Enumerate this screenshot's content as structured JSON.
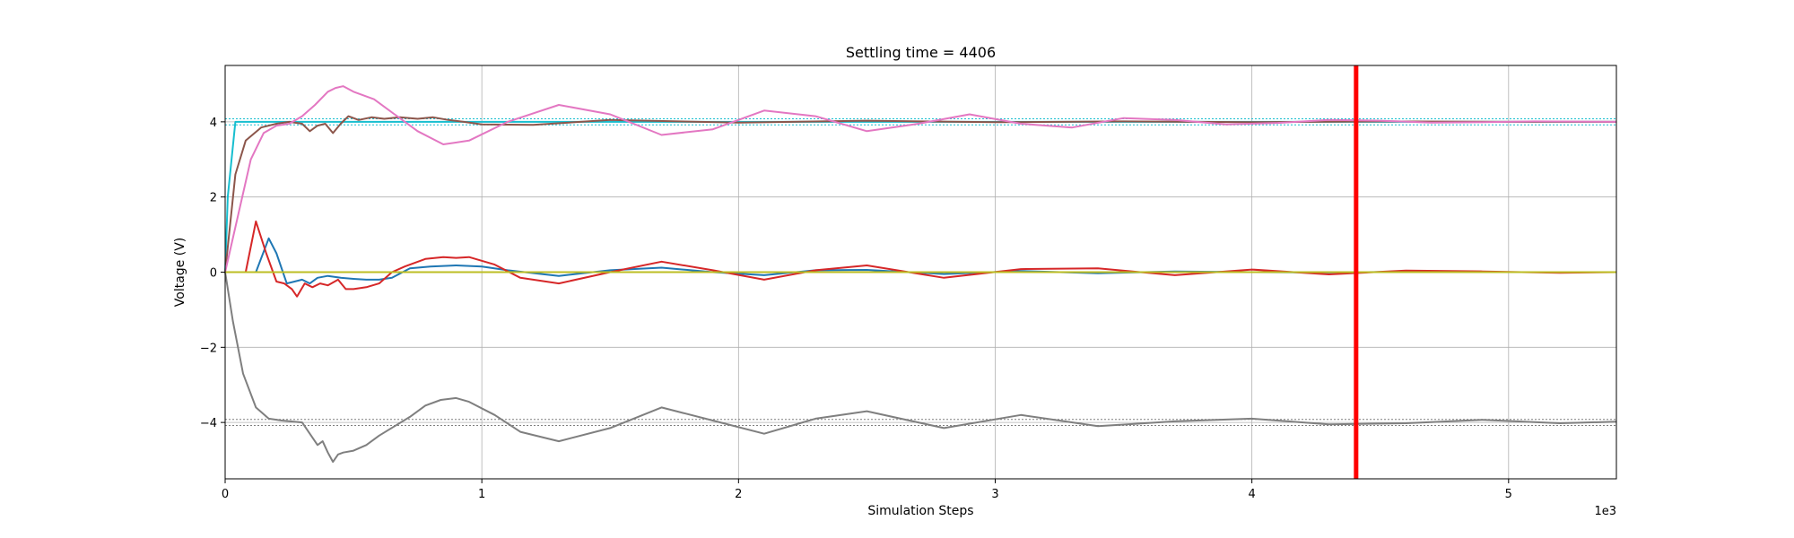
{
  "chart_data": {
    "type": "line",
    "title": "Settling time = 4406",
    "xlabel": "Simulation Steps",
    "ylabel": "Voltage (V)",
    "x_offset_label": "1e3",
    "xlim": [
      0,
      5.42
    ],
    "ylim": [
      -5.5,
      5.5
    ],
    "x_ticks": [
      0,
      1,
      2,
      3,
      4,
      5
    ],
    "x_tick_labels": [
      "0",
      "1",
      "2",
      "3",
      "4",
      "5"
    ],
    "y_ticks": [
      -4,
      -2,
      0,
      2,
      4
    ],
    "y_tick_labels": [
      "−4",
      "−2",
      "0",
      "2",
      "4"
    ],
    "grid": true,
    "settling_marker": {
      "x": 4.406,
      "color": "#ff0000"
    },
    "reference_bands": [
      {
        "color": "#17becf",
        "values": [
          4.08,
          3.92
        ]
      },
      {
        "color": "#7f7f7f",
        "values": [
          -3.92,
          -4.08
        ]
      }
    ],
    "series": [
      {
        "color": "#17becf",
        "x": [
          0,
          0.01,
          0.04,
          5.42
        ],
        "y": [
          0,
          2.0,
          4.0,
          4.0
        ]
      },
      {
        "color": "#8c564b",
        "x": [
          0,
          0.04,
          0.08,
          0.14,
          0.2,
          0.25,
          0.3,
          0.33,
          0.36,
          0.39,
          0.42,
          0.45,
          0.48,
          0.52,
          0.57,
          0.62,
          0.68,
          0.75,
          0.81,
          0.87,
          0.93,
          1.0,
          1.2,
          1.5,
          2.0,
          2.5,
          3.0,
          3.5,
          4.0,
          4.5,
          5.0,
          5.42
        ],
        "y": [
          0,
          2.6,
          3.5,
          3.85,
          3.95,
          4.0,
          3.95,
          3.75,
          3.9,
          3.95,
          3.7,
          3.95,
          4.15,
          4.05,
          4.12,
          4.08,
          4.12,
          4.08,
          4.12,
          4.05,
          4.0,
          3.93,
          3.92,
          4.05,
          3.98,
          4.03,
          3.99,
          4.01,
          3.99,
          4.01,
          4.0,
          4.0
        ]
      },
      {
        "color": "#e377c2",
        "x": [
          0,
          0.05,
          0.1,
          0.15,
          0.2,
          0.25,
          0.3,
          0.35,
          0.4,
          0.43,
          0.46,
          0.5,
          0.58,
          0.66,
          0.75,
          0.85,
          0.95,
          1.1,
          1.3,
          1.5,
          1.7,
          1.9,
          2.1,
          2.3,
          2.5,
          2.7,
          2.9,
          3.1,
          3.3,
          3.5,
          3.7,
          3.9,
          4.1,
          4.3,
          4.5,
          4.7,
          4.9,
          5.1,
          5.42
        ],
        "y": [
          0,
          1.5,
          3.0,
          3.7,
          3.9,
          3.95,
          4.15,
          4.45,
          4.8,
          4.9,
          4.95,
          4.8,
          4.6,
          4.2,
          3.75,
          3.4,
          3.5,
          4.0,
          4.45,
          4.2,
          3.65,
          3.8,
          4.3,
          4.15,
          3.75,
          3.95,
          4.2,
          3.95,
          3.85,
          4.1,
          4.05,
          3.93,
          3.97,
          4.05,
          4.03,
          3.98,
          3.99,
          4.01,
          4.0
        ]
      },
      {
        "color": "#7f7f7f",
        "x": [
          0,
          0.03,
          0.07,
          0.12,
          0.17,
          0.22,
          0.3,
          0.33,
          0.36,
          0.38,
          0.4,
          0.42,
          0.44,
          0.46,
          0.5,
          0.55,
          0.6,
          0.66,
          0.72,
          0.78,
          0.84,
          0.9,
          0.95,
          1.05,
          1.15,
          1.3,
          1.5,
          1.7,
          1.9,
          2.1,
          2.3,
          2.5,
          2.8,
          3.1,
          3.4,
          3.7,
          4.0,
          4.3,
          4.6,
          4.9,
          5.2,
          5.42
        ],
        "y": [
          0,
          -1.3,
          -2.7,
          -3.6,
          -3.9,
          -3.95,
          -4.0,
          -4.3,
          -4.6,
          -4.5,
          -4.8,
          -5.05,
          -4.85,
          -4.8,
          -4.75,
          -4.6,
          -4.35,
          -4.1,
          -3.85,
          -3.55,
          -3.4,
          -3.35,
          -3.45,
          -3.8,
          -4.25,
          -4.5,
          -4.15,
          -3.6,
          -3.95,
          -4.3,
          -3.9,
          -3.7,
          -4.15,
          -3.8,
          -4.1,
          -3.97,
          -3.9,
          -4.05,
          -4.02,
          -3.93,
          -4.02,
          -3.98
        ]
      },
      {
        "color": "#1f77b4",
        "x": [
          0,
          0.12,
          0.17,
          0.2,
          0.24,
          0.27,
          0.3,
          0.33,
          0.36,
          0.4,
          0.45,
          0.5,
          0.55,
          0.6,
          0.65,
          0.72,
          0.8,
          0.9,
          1.0,
          1.1,
          1.3,
          1.5,
          1.7,
          1.9,
          2.1,
          2.3,
          2.5,
          2.8,
          3.1,
          3.4,
          3.7,
          4.0,
          4.3,
          4.6,
          4.9,
          5.2,
          5.42
        ],
        "y": [
          0,
          0,
          0.9,
          0.5,
          -0.3,
          -0.25,
          -0.2,
          -0.3,
          -0.15,
          -0.1,
          -0.15,
          -0.18,
          -0.2,
          -0.2,
          -0.15,
          0.1,
          0.15,
          0.18,
          0.15,
          0.05,
          -0.1,
          0.05,
          0.12,
          0.0,
          -0.08,
          0.05,
          0.06,
          -0.05,
          0.03,
          -0.03,
          0.02,
          0.0,
          -0.01,
          0.01,
          0.0,
          0.0,
          0.0
        ]
      },
      {
        "color": "#d62728",
        "x": [
          0,
          0.08,
          0.12,
          0.16,
          0.2,
          0.23,
          0.26,
          0.28,
          0.31,
          0.34,
          0.37,
          0.4,
          0.44,
          0.47,
          0.5,
          0.55,
          0.6,
          0.65,
          0.7,
          0.78,
          0.85,
          0.9,
          0.95,
          1.05,
          1.15,
          1.3,
          1.5,
          1.7,
          1.9,
          2.1,
          2.3,
          2.5,
          2.8,
          3.1,
          3.4,
          3.7,
          4.0,
          4.3,
          4.6,
          4.9,
          5.2,
          5.42
        ],
        "y": [
          0,
          0,
          1.35,
          0.5,
          -0.25,
          -0.3,
          -0.45,
          -0.65,
          -0.3,
          -0.4,
          -0.3,
          -0.35,
          -0.2,
          -0.45,
          -0.45,
          -0.4,
          -0.3,
          0.0,
          0.15,
          0.35,
          0.4,
          0.38,
          0.4,
          0.2,
          -0.15,
          -0.3,
          0.0,
          0.28,
          0.05,
          -0.2,
          0.05,
          0.18,
          -0.15,
          0.08,
          0.1,
          -0.08,
          0.07,
          -0.06,
          0.04,
          0.02,
          -0.02,
          0.0
        ]
      },
      {
        "color": "#bcbd22",
        "x": [
          0,
          5.42
        ],
        "y": [
          0,
          0
        ]
      }
    ]
  }
}
